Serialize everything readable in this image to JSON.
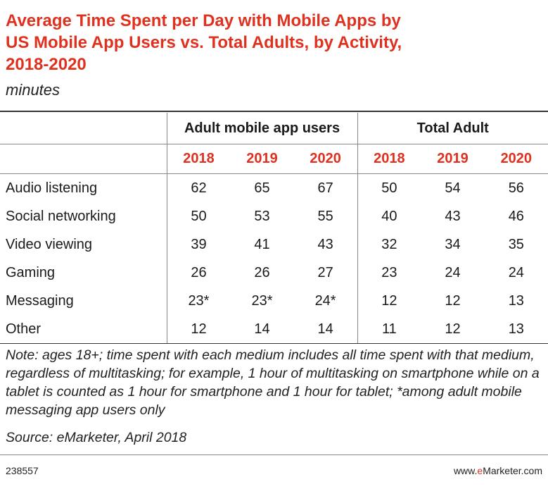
{
  "chart_data": {
    "type": "table",
    "title_lines": [
      "Average Time Spent per Day with Mobile Apps by",
      "US Mobile App Users vs. Total Adults, by Activity,",
      "2018-2020"
    ],
    "subtitle": "minutes",
    "groups": [
      "Adult mobile app users",
      "Total Adult"
    ],
    "years": [
      "2018",
      "2019",
      "2020",
      "2018",
      "2019",
      "2020"
    ],
    "rows": [
      {
        "label": "Audio listening",
        "values": [
          "62",
          "65",
          "67",
          "50",
          "54",
          "56"
        ]
      },
      {
        "label": "Social networking",
        "values": [
          "50",
          "53",
          "55",
          "40",
          "43",
          "46"
        ]
      },
      {
        "label": "Video viewing",
        "values": [
          "39",
          "41",
          "43",
          "32",
          "34",
          "35"
        ]
      },
      {
        "label": "Gaming",
        "values": [
          "26",
          "26",
          "27",
          "23",
          "24",
          "24"
        ]
      },
      {
        "label": "Messaging",
        "values": [
          "23*",
          "23*",
          "24*",
          "12",
          "12",
          "13"
        ]
      },
      {
        "label": "Other",
        "values": [
          "12",
          "14",
          "14",
          "11",
          "12",
          "13"
        ]
      }
    ],
    "note": "Note: ages 18+; time spent with each medium includes all time spent with that medium, regardless of multitasking; for example, 1 hour of multitasking on smartphone while on a tablet is counted as 1 hour for smartphone and 1 hour for tablet; *among adult mobile messaging app users only",
    "source": "Source: eMarketer, April 2018"
  },
  "footer": {
    "chart_id": "238557",
    "site_prefix": "www.",
    "site_brand": "e",
    "site_suffix": "Marketer.com"
  },
  "colors": {
    "accent": "#e0301e",
    "text": "#1a1a1a",
    "rule": "#888888"
  }
}
